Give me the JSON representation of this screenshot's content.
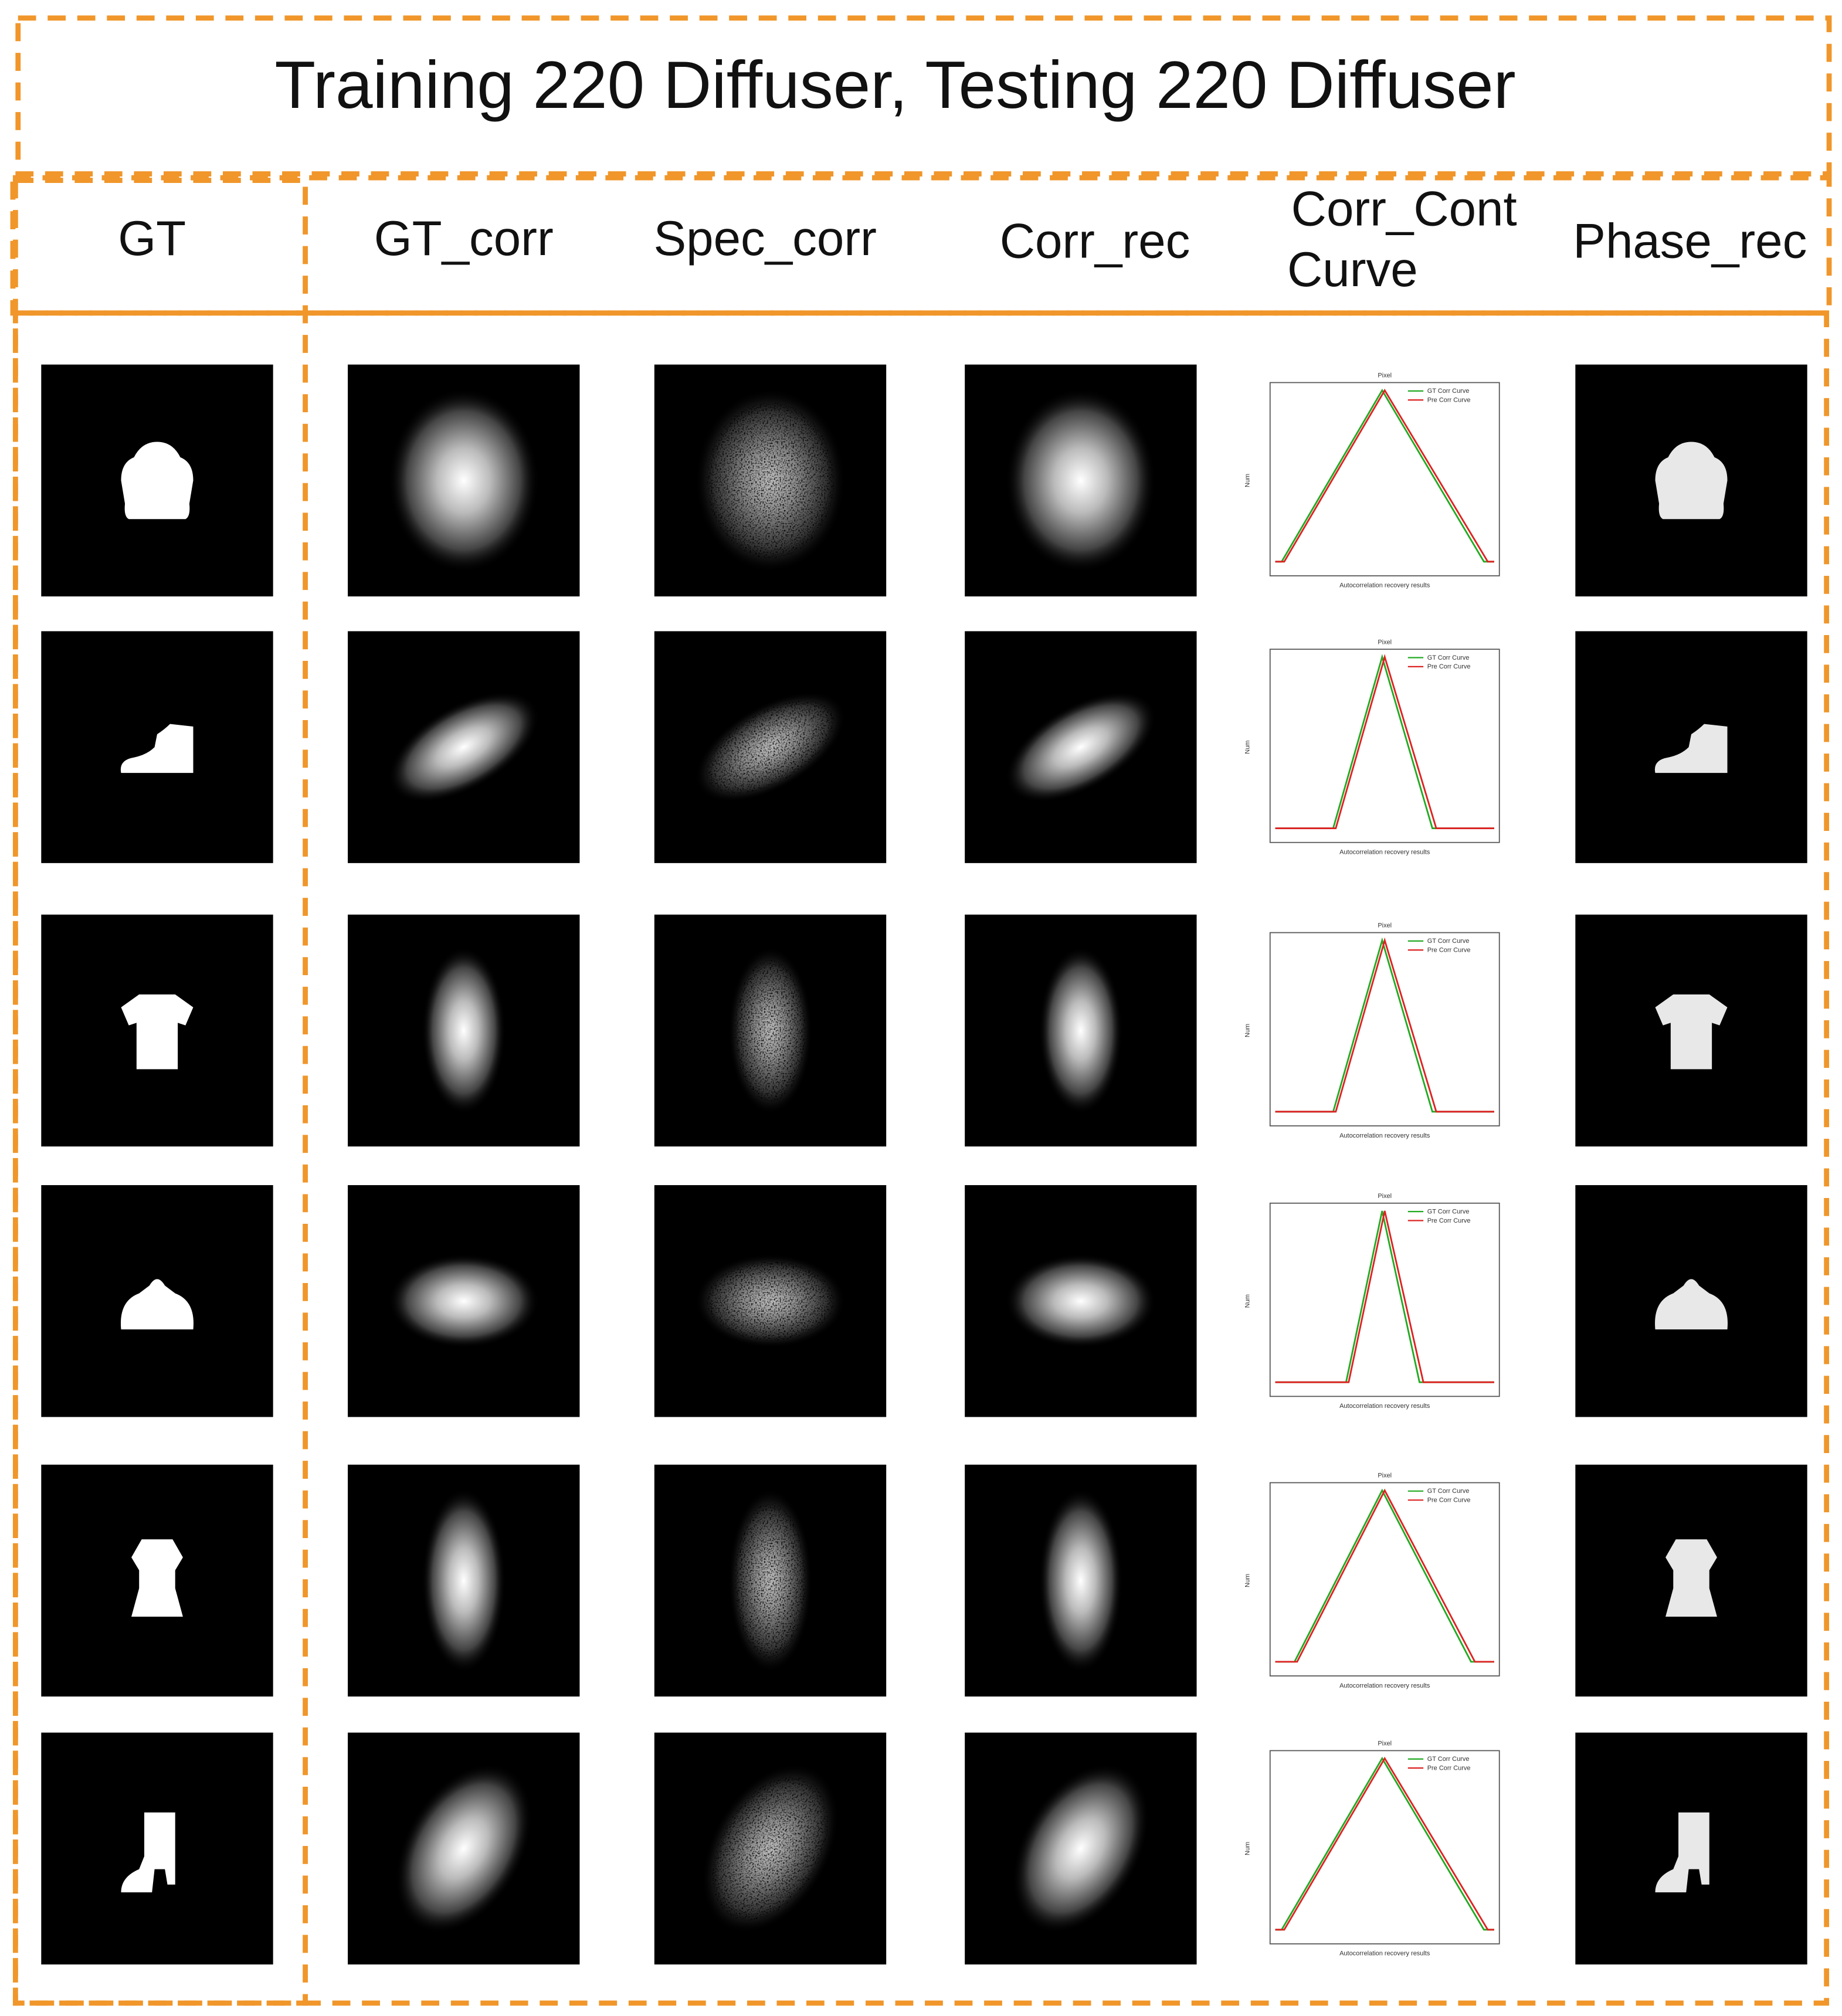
{
  "header": {
    "title": "Training 220 Diffuser, Testing 220 Diffuser"
  },
  "columns": [
    [
      "GT"
    ],
    [
      "GT_corr"
    ],
    [
      "Spec_corr"
    ],
    [
      "Corr_rec"
    ],
    [
      "Corr_Cont",
      "Curve"
    ],
    [
      "Phase_rec"
    ]
  ],
  "plot_labels": {
    "title": "Pixel",
    "legend": [
      "GT Corr Curve",
      "Pre Corr Curve"
    ],
    "x_label": "Autocorrelation recovery results",
    "y_label": "Num"
  }
}
